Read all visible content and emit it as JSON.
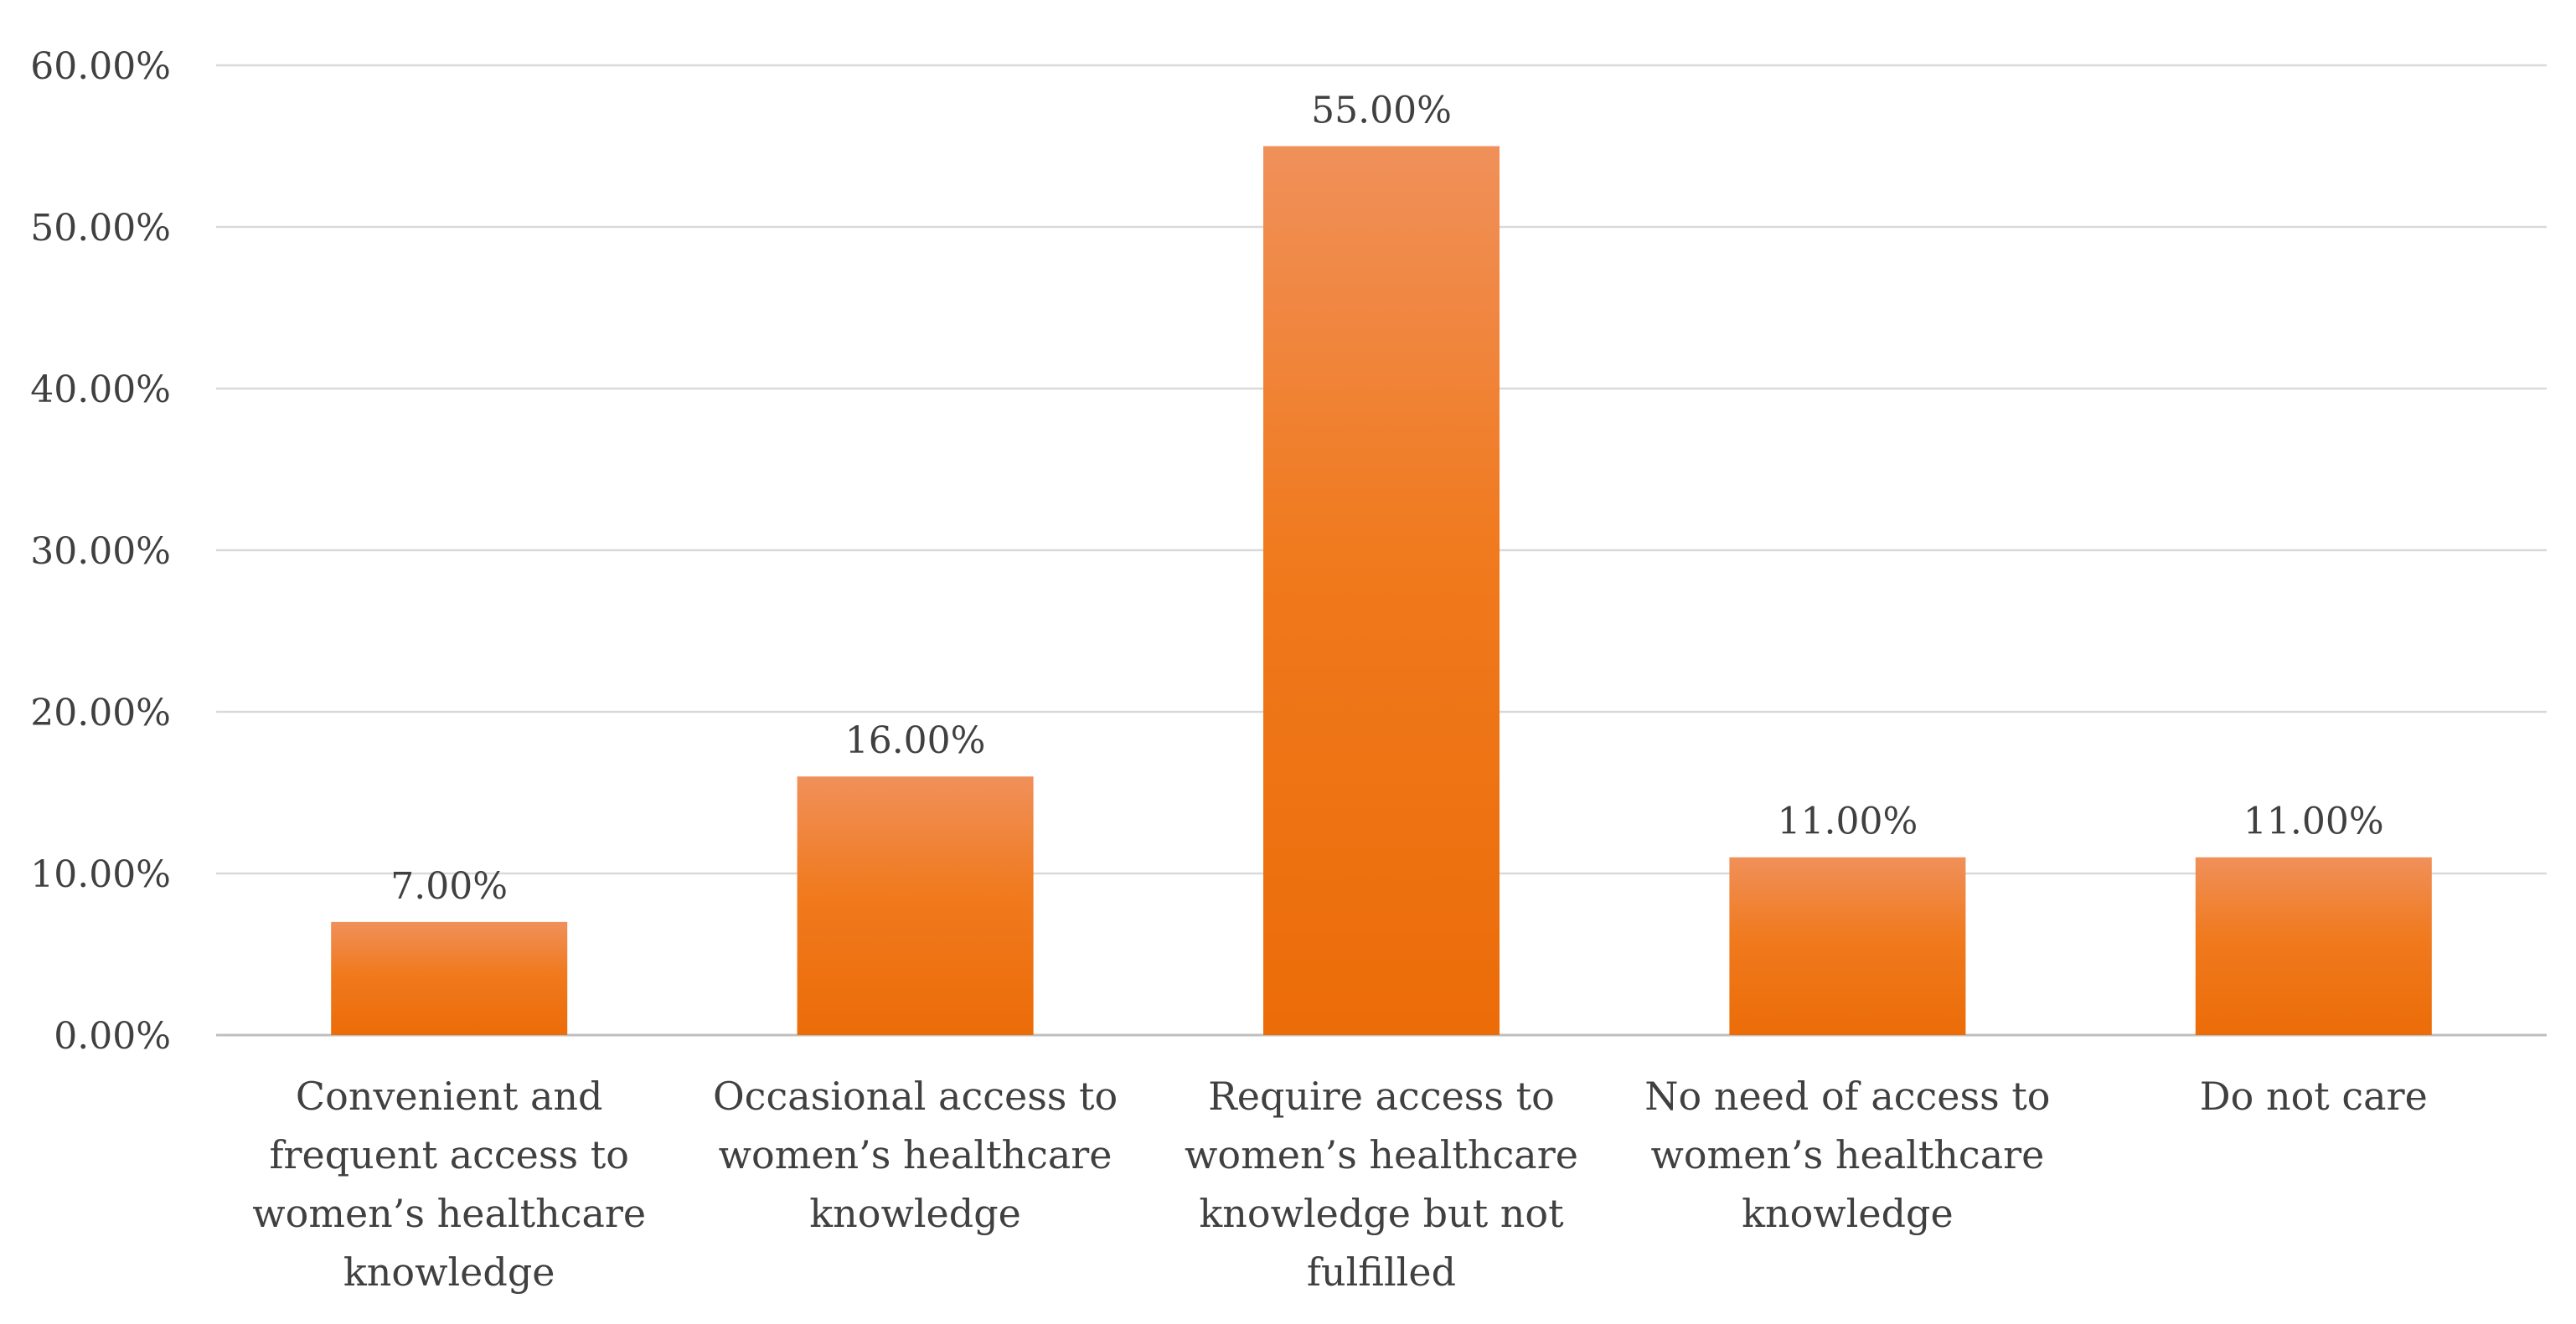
{
  "chart_data": {
    "type": "bar",
    "categories": [
      [
        "Convenient and",
        "frequent access to",
        "women’s healthcare",
        "knowledge"
      ],
      [
        "Occasional access to",
        "women’s healthcare",
        "knowledge"
      ],
      [
        "Require access to",
        "women’s healthcare",
        "knowledge but not",
        "fulfilled"
      ],
      [
        "No need of access to",
        "women’s healthcare",
        "knowledge"
      ],
      [
        "Do not care"
      ]
    ],
    "values": [
      7.0,
      16.0,
      55.0,
      11.0,
      11.0
    ],
    "data_labels": [
      "7.00%",
      "16.00%",
      "55.00%",
      "11.00%",
      "11.00%"
    ],
    "y_ticks": [
      "0.00%",
      "10.00%",
      "20.00%",
      "30.00%",
      "40.00%",
      "50.00%",
      "60.00%"
    ],
    "ylim": [
      0,
      60
    ],
    "grid": true,
    "legend": "none",
    "title": "",
    "xlabel": "",
    "ylabel": "",
    "colors": {
      "bar_top": "#f0905a",
      "bar_mid": "#f07a1e",
      "bar_bottom": "#ec6c08",
      "grid": "#d9d9d9",
      "axis": "#bfbfbf",
      "text": "#404040"
    }
  }
}
